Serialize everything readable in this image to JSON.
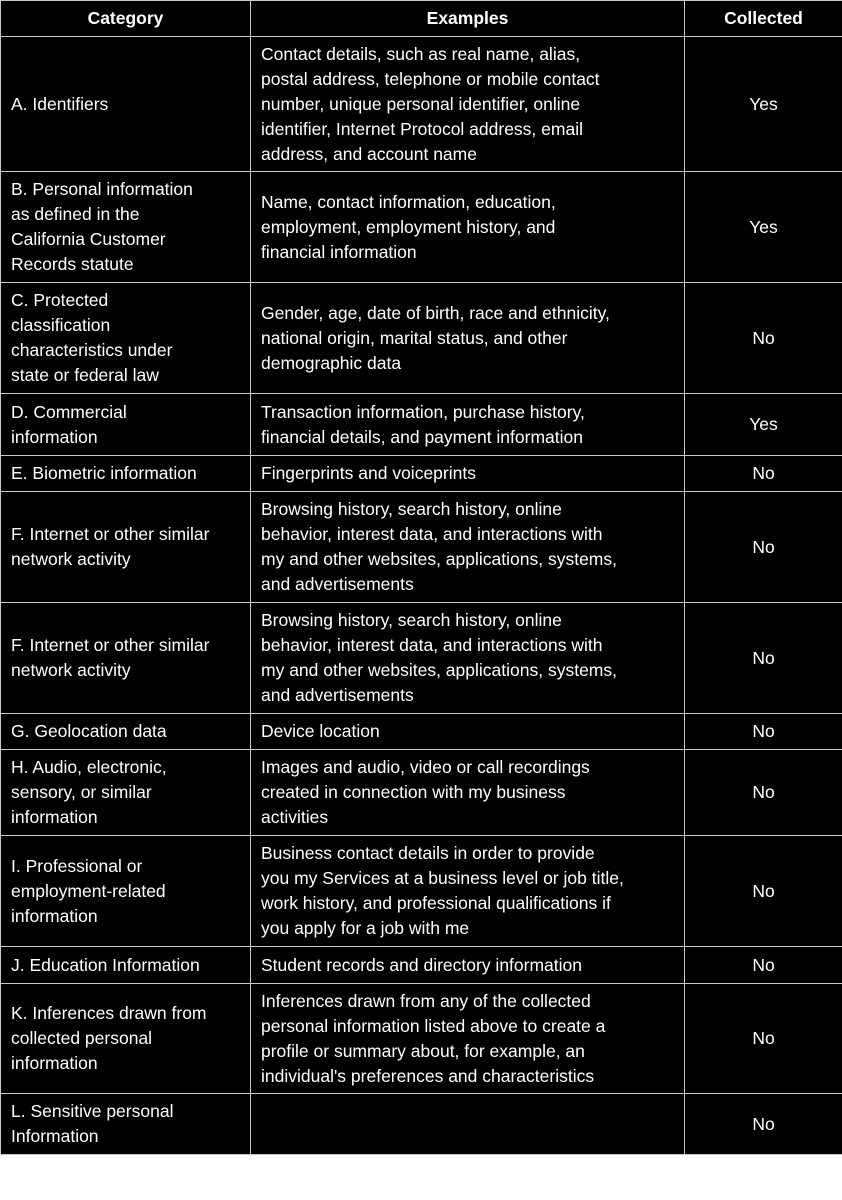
{
  "headers": [
    "Category",
    "Examples",
    "Collected"
  ],
  "rows": [
    {
      "category": [
        "A. Identifiers"
      ],
      "examples": [
        "Contact details, such as real name, alias,",
        "postal address, telephone or mobile contact",
        "number, unique personal identifier, online",
        "identifier, Internet Protocol address, email",
        "address, and account name"
      ],
      "collected": "Yes"
    },
    {
      "category": [
        "B. Personal information",
        "as defined in the",
        "California Customer",
        "Records statute"
      ],
      "examples": [
        "Name, contact information, education,",
        "employment, employment history, and",
        "financial information"
      ],
      "collected": "Yes"
    },
    {
      "category": [
        "C. Protected",
        "classification",
        "characteristics under",
        "state or federal law"
      ],
      "examples": [
        "Gender, age, date of birth, race and ethnicity,",
        "national origin, marital status, and other",
        "demographic data"
      ],
      "collected": "No"
    },
    {
      "category": [
        "D. Commercial",
        "information"
      ],
      "examples": [
        "Transaction information, purchase history,",
        "financial details, and payment information"
      ],
      "collected": "Yes"
    },
    {
      "category": [
        "E. Biometric information"
      ],
      "examples": [
        "Fingerprints and voiceprints"
      ],
      "collected": "No"
    },
    {
      "category": [
        "F. Internet or other similar",
        "network activity"
      ],
      "examples": [
        "Browsing history, search history, online",
        "behavior, interest data, and interactions with",
        "my and other websites, applications, systems,",
        "and advertisements"
      ],
      "collected": "No"
    },
    {
      "category": [
        "F. Internet or other similar",
        "network activity"
      ],
      "examples": [
        "Browsing history, search history, online",
        "behavior, interest data, and interactions with",
        "my and other websites, applications, systems,",
        "and advertisements"
      ],
      "collected": "No"
    },
    {
      "category": [
        "G. Geolocation data"
      ],
      "examples": [
        "Device location"
      ],
      "collected": "No"
    },
    {
      "category": [
        "H. Audio, electronic,",
        "sensory, or similar",
        "information"
      ],
      "examples": [
        "Images and audio, video or call recordings",
        "created in connection with my business",
        "activities"
      ],
      "collected": "No"
    },
    {
      "category": [
        "I. Professional or",
        "employment-related",
        "information"
      ],
      "examples": [
        "Business contact details in order to provide",
        "you my Services at a business level or job title,",
        "work history, and professional qualifications if",
        "you apply for a job with me"
      ],
      "collected": "No"
    },
    {
      "category": [
        "J. Education Information"
      ],
      "examples": [
        "Student records and directory information"
      ],
      "collected": "No"
    },
    {
      "category": [
        "K. Inferences drawn from",
        "collected personal",
        "information"
      ],
      "examples": [
        "Inferences drawn from any of the collected",
        "personal information listed above to create a",
        "profile or summary about, for example, an",
        "individual's preferences and characteristics"
      ],
      "collected": "No"
    },
    {
      "category": [
        "L. Sensitive personal",
        "Information"
      ],
      "examples": [],
      "collected": "No"
    }
  ]
}
